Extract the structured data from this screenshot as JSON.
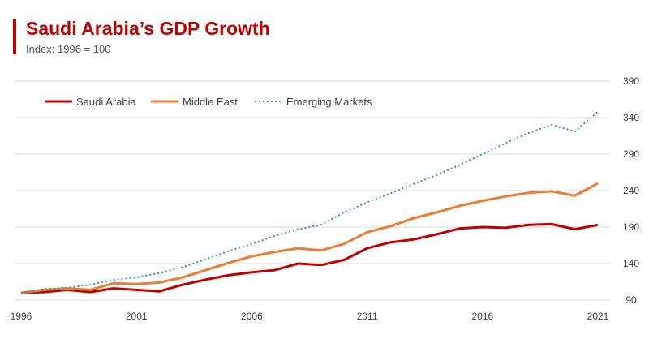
{
  "title": "Saudi Arabia’s GDP Growth",
  "subtitle": "Index: 1996 = 100",
  "chart_data": {
    "type": "line",
    "title": "Saudi Arabia’s GDP Growth",
    "subtitle": "Index: 1996 = 100",
    "xlabel": "",
    "ylabel": "",
    "x": [
      1996,
      1997,
      1998,
      1999,
      2000,
      2001,
      2002,
      2003,
      2004,
      2005,
      2006,
      2007,
      2008,
      2009,
      2010,
      2011,
      2012,
      2013,
      2014,
      2015,
      2016,
      2017,
      2018,
      2019,
      2020,
      2021
    ],
    "xlim": [
      1996,
      2021
    ],
    "ylim": [
      90,
      390
    ],
    "x_ticks": [
      1996,
      2001,
      2006,
      2011,
      2016,
      2021
    ],
    "y_ticks": [
      90,
      140,
      190,
      240,
      290,
      340,
      390
    ],
    "grid": "horizontal",
    "legend_position": "top-left",
    "series": [
      {
        "name": "Saudi Arabia",
        "color": "#c00000",
        "style": "solid",
        "values": [
          100,
          101,
          104,
          101,
          106,
          104,
          102,
          111,
          118,
          124,
          128,
          131,
          140,
          138,
          145,
          161,
          169,
          173,
          180,
          188,
          190,
          189,
          193,
          194,
          187,
          193
        ]
      },
      {
        "name": "Middle East",
        "color": "#ed7d31",
        "style": "solid",
        "values": [
          100,
          104,
          106,
          104,
          113,
          112,
          114,
          121,
          131,
          141,
          150,
          156,
          161,
          158,
          167,
          183,
          191,
          202,
          210,
          219,
          226,
          232,
          237,
          239,
          233,
          250
        ]
      },
      {
        "name": "Emerging Markets",
        "color": "#2e9aa0",
        "style": "dotted",
        "values": [
          100,
          105,
          107,
          111,
          118,
          121,
          127,
          135,
          146,
          157,
          167,
          178,
          187,
          193,
          210,
          224,
          236,
          249,
          261,
          275,
          290,
          305,
          319,
          330,
          321,
          348
        ]
      }
    ]
  }
}
